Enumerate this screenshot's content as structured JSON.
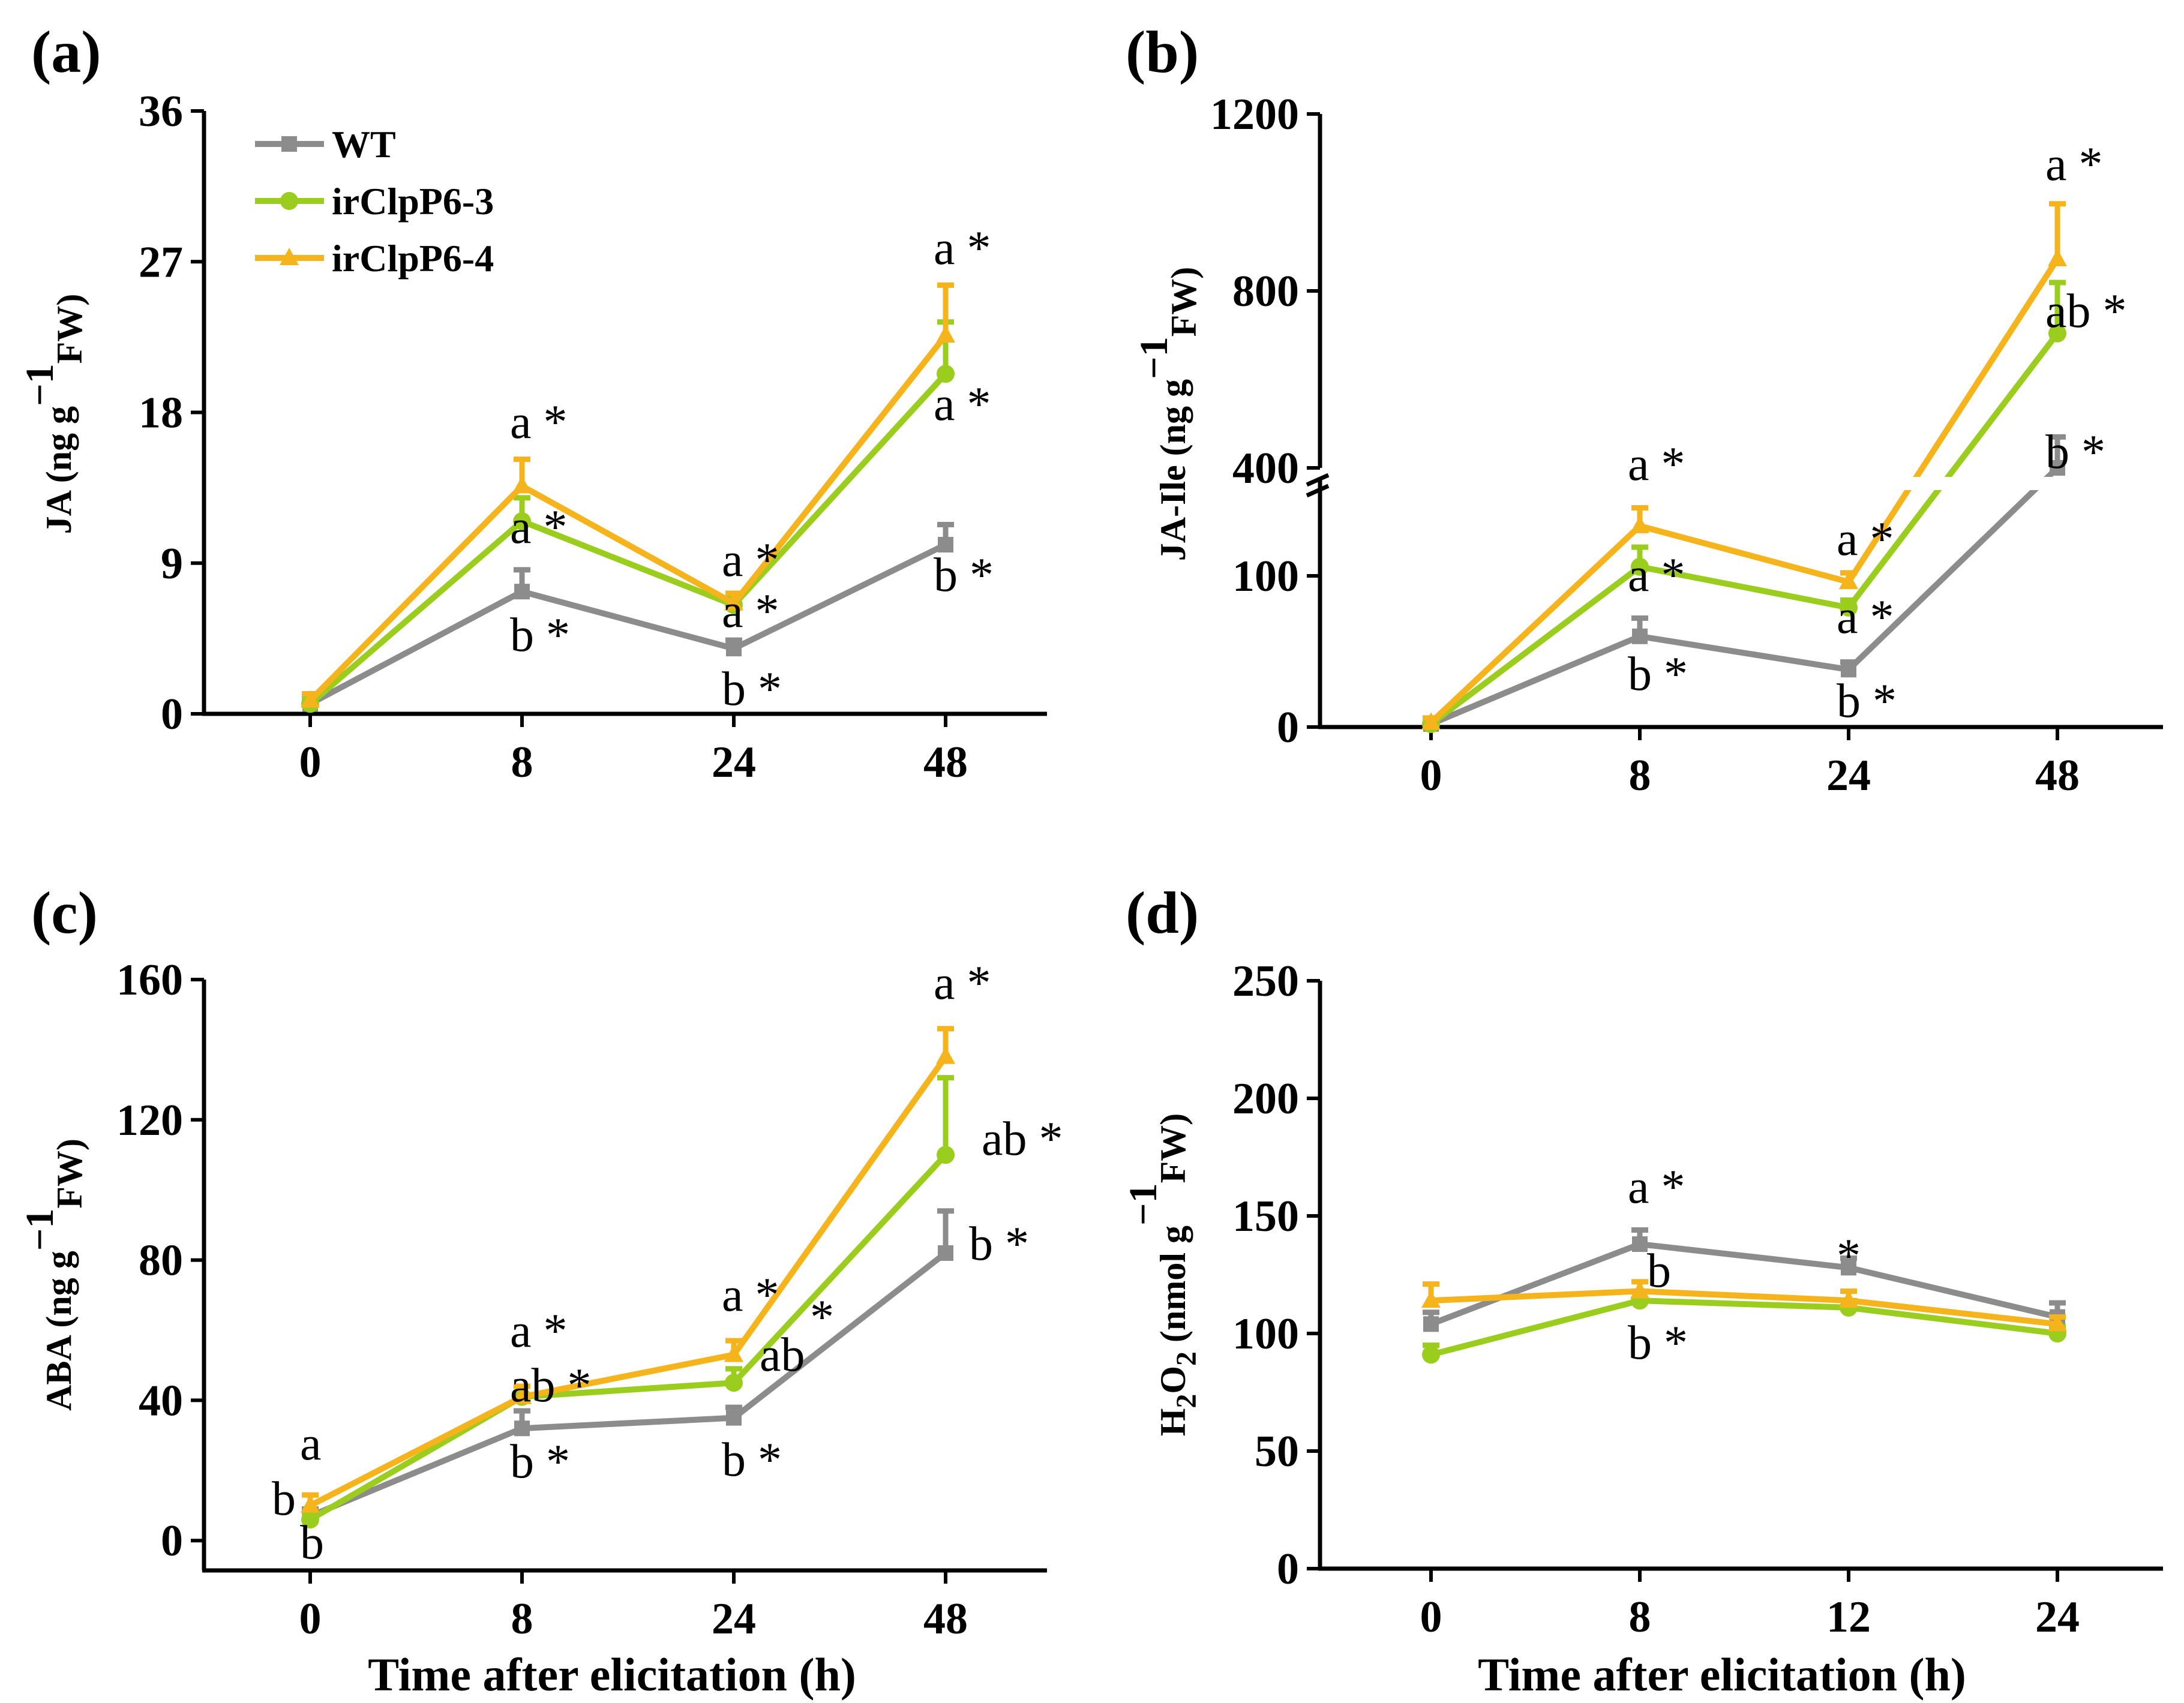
{
  "x_axis_title": "Time after elicitation (h)",
  "legend": [
    {
      "label": "WT",
      "marker": "square",
      "color": "#8c8c8c"
    },
    {
      "label": "irClpP6-3",
      "marker": "circle",
      "color": "#9acd1e"
    },
    {
      "label": "irClpP6-4",
      "marker": "triangle",
      "color": "#f5b31c"
    }
  ],
  "colors": {
    "WT": "#8c8c8c",
    "irClpP6-3": "#9acd1e",
    "irClpP6-4": "#f5b31c"
  },
  "chart_data": [
    {
      "panel": "(a)",
      "type": "line",
      "title": "",
      "ylabel_main": "JA (ng g",
      "ylabel_sup": "−1",
      "ylabel_sub": "FW)",
      "categories": [
        "0",
        "8",
        "24",
        "48"
      ],
      "yticks": [
        "0",
        "9",
        "18",
        "27",
        "36"
      ],
      "ylim": [
        0,
        36
      ],
      "series": [
        {
          "name": "WT",
          "values": [
            0.6,
            7.3,
            3.9,
            10.1
          ],
          "errors": [
            0.3,
            1.3,
            0.5,
            1.2
          ]
        },
        {
          "name": "irClpP6-3",
          "values": [
            0.6,
            11.5,
            6.5,
            20.3
          ],
          "errors": [
            0.3,
            1.4,
            0.5,
            3.1
          ]
        },
        {
          "name": "irClpP6-4",
          "values": [
            0.8,
            13.6,
            6.6,
            22.6
          ],
          "errors": [
            0.4,
            1.6,
            0.6,
            3.0
          ]
        }
      ],
      "annotations": [
        "a *",
        "a *",
        "b *",
        "a *",
        "a *",
        "b *",
        "a *",
        "a *",
        "b *"
      ]
    },
    {
      "panel": "(b)",
      "type": "line",
      "title": "",
      "ylabel_main": "JA-Ile (ng g",
      "ylabel_sup": "−1",
      "ylabel_sub": "FW)",
      "categories": [
        "0",
        "8",
        "24",
        "48"
      ],
      "yticks": [
        "0",
        "100",
        "400",
        "800",
        "1200"
      ],
      "ylim": [
        0,
        1200
      ],
      "axis_break": [
        150,
        400
      ],
      "series": [
        {
          "name": "WT",
          "values": [
            2,
            60,
            38,
            400
          ],
          "errors": [
            2,
            12,
            5,
            70
          ]
        },
        {
          "name": "irClpP6-3",
          "values": [
            2,
            106,
            79,
            704
          ],
          "errors": [
            2,
            13,
            5,
            115
          ]
        },
        {
          "name": "irClpP6-4",
          "values": [
            3,
            133,
            96,
            872
          ],
          "errors": [
            3,
            12,
            6,
            125
          ]
        }
      ],
      "annotations": [
        "a *",
        "a *",
        "b *",
        "a *",
        "a *",
        "b *",
        "a *",
        "ab *",
        "b *"
      ]
    },
    {
      "panel": "(c)",
      "type": "line",
      "title": "",
      "ylabel_main": "ABA (ng g",
      "ylabel_sup": "−1",
      "ylabel_sub": "FW)",
      "categories": [
        "0",
        "8",
        "24",
        "48"
      ],
      "yticks": [
        "0",
        "40",
        "80",
        "120",
        "160"
      ],
      "ylim": [
        -8,
        160
      ],
      "series": [
        {
          "name": "WT",
          "values": [
            7,
            32,
            35,
            82
          ],
          "errors": [
            2,
            5,
            3,
            12
          ]
        },
        {
          "name": "irClpP6-3",
          "values": [
            6,
            41,
            45,
            110
          ],
          "errors": [
            2,
            3,
            4,
            22
          ]
        },
        {
          "name": "irClpP6-4",
          "values": [
            10,
            41,
            53,
            138
          ],
          "errors": [
            3,
            3,
            4,
            8
          ]
        }
      ],
      "annotations": [
        "a",
        "b",
        "b",
        "a *",
        "ab *",
        "b *",
        "a *",
        "ab",
        "*",
        "b *",
        "a *",
        "ab *",
        "b *"
      ]
    },
    {
      "panel": "(d)",
      "type": "line",
      "title": "",
      "ylabel_main": "H",
      "ylabel_sub1": "2",
      "ylabel_mid": "O",
      "ylabel_sub2": "2",
      "ylabel_rest": " (nmol g",
      "ylabel_sup": "−1",
      "ylabel_sub": "FW)",
      "categories": [
        "0",
        "8",
        "12",
        "24"
      ],
      "yticks": [
        "0",
        "50",
        "100",
        "150",
        "200",
        "250"
      ],
      "ylim": [
        0,
        250
      ],
      "series": [
        {
          "name": "WT",
          "values": [
            104,
            138,
            128,
            107
          ],
          "errors": [
            5,
            6,
            4,
            6
          ]
        },
        {
          "name": "irClpP6-3",
          "values": [
            91,
            114,
            111,
            100
          ],
          "errors": [
            4,
            4,
            3,
            3
          ]
        },
        {
          "name": "irClpP6-4",
          "values": [
            114,
            118,
            114,
            104
          ],
          "errors": [
            7,
            4,
            4,
            3
          ]
        }
      ],
      "annotations": [
        "a *",
        "b",
        "b *",
        "*"
      ]
    }
  ]
}
